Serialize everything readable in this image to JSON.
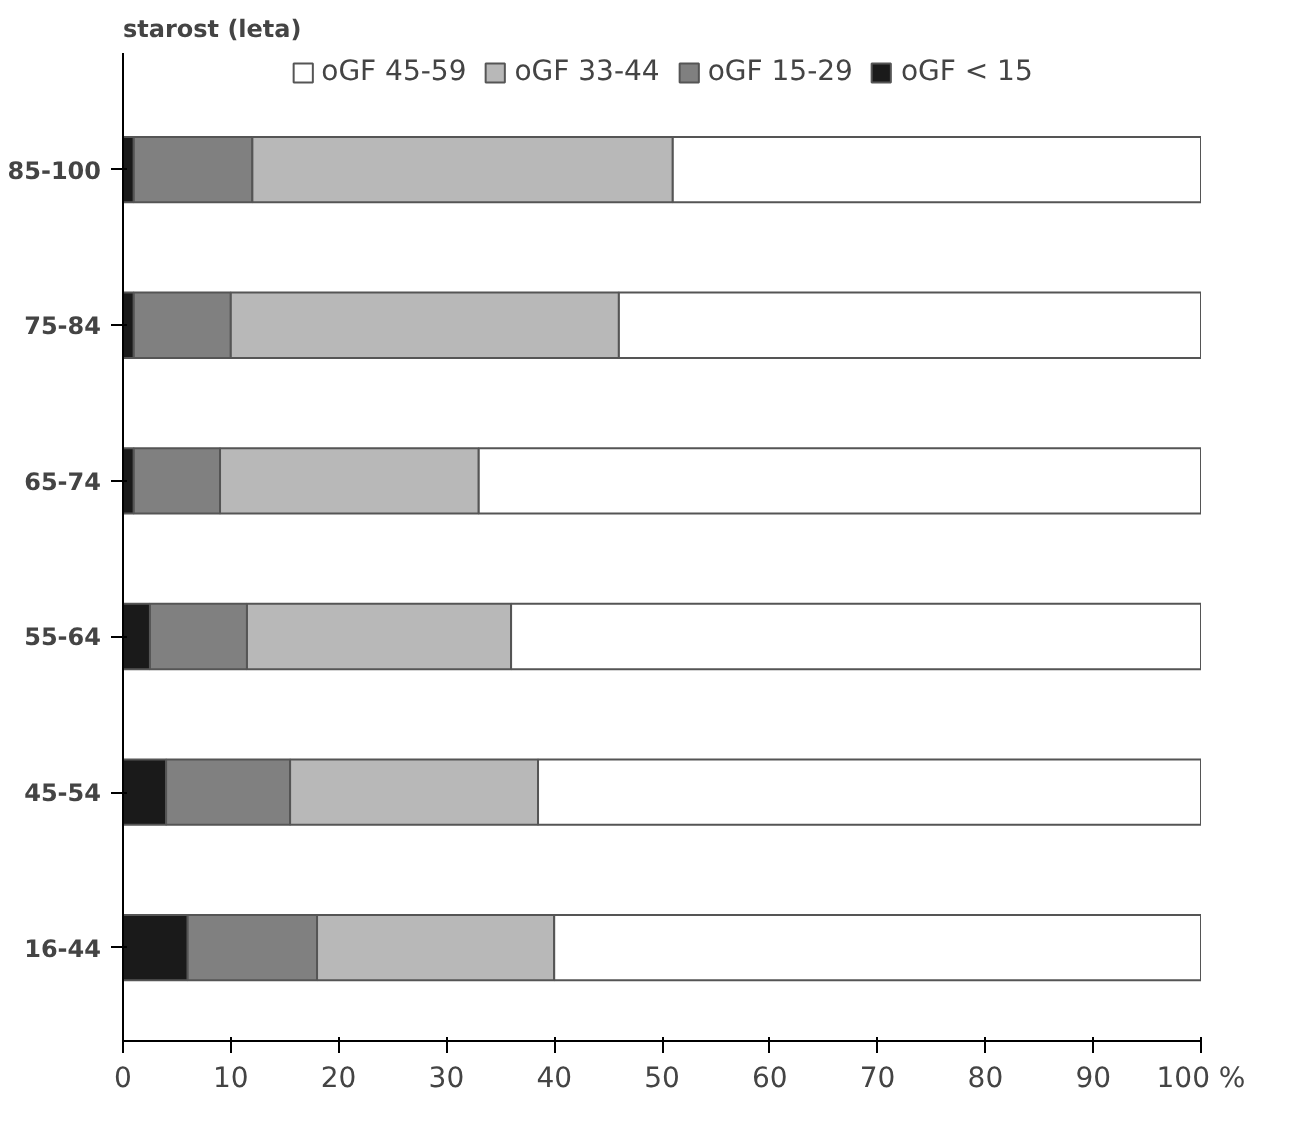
{
  "chart_data": {
    "type": "bar",
    "orientation": "horizontal",
    "stacked": true,
    "ylabel": "starost (leta)",
    "categories": [
      "85-100",
      "75-84",
      "65-74",
      "55-64",
      "45-54",
      "16-44"
    ],
    "series": [
      {
        "name": "oGF < 15",
        "color": "#1a1a1a",
        "values": [
          1,
          1,
          1,
          2.5,
          4,
          6
        ]
      },
      {
        "name": "oGF 15-29",
        "color": "#808080",
        "values": [
          11,
          9,
          8,
          9,
          11.5,
          12
        ]
      },
      {
        "name": "oGF 33-44",
        "color": "#b8b8b8",
        "values": [
          39,
          36,
          24,
          24.5,
          23,
          22
        ]
      },
      {
        "name": "oGF 45-59",
        "color": "#ffffff",
        "values": [
          49,
          54,
          67,
          64,
          61.5,
          60
        ]
      }
    ],
    "xlim": [
      0,
      100
    ],
    "xticks": [
      0,
      10,
      20,
      30,
      40,
      50,
      60,
      70,
      80,
      90,
      {
        "value": 100,
        "label": "100 %"
      }
    ],
    "grid": false,
    "legend": "top"
  }
}
